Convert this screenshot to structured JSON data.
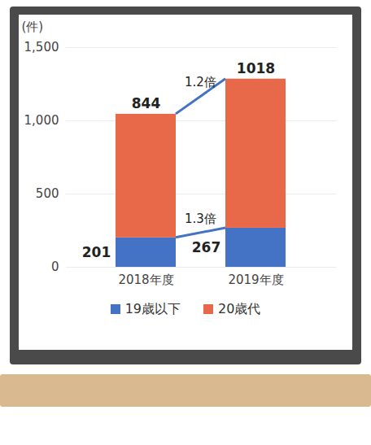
{
  "chart_data": {
    "type": "bar",
    "stacked": true,
    "categories": [
      "2018年度",
      "2019年度"
    ],
    "series": [
      {
        "name": "19歳以下",
        "color": "#4472c4",
        "values": [
          201,
          267
        ]
      },
      {
        "name": "20歳代",
        "color": "#e8694a",
        "values": [
          844,
          1018
        ]
      }
    ],
    "y_label": "(件)",
    "ylim": [
      0,
      1500
    ],
    "yticks": [
      0,
      500,
      1000,
      1500
    ],
    "grid": true,
    "data_labels": true,
    "legend": "bottom",
    "annotations": [
      {
        "text": "1.3倍",
        "series": "19歳以下"
      },
      {
        "text": "1.2倍",
        "series": "20歳代"
      }
    ]
  }
}
